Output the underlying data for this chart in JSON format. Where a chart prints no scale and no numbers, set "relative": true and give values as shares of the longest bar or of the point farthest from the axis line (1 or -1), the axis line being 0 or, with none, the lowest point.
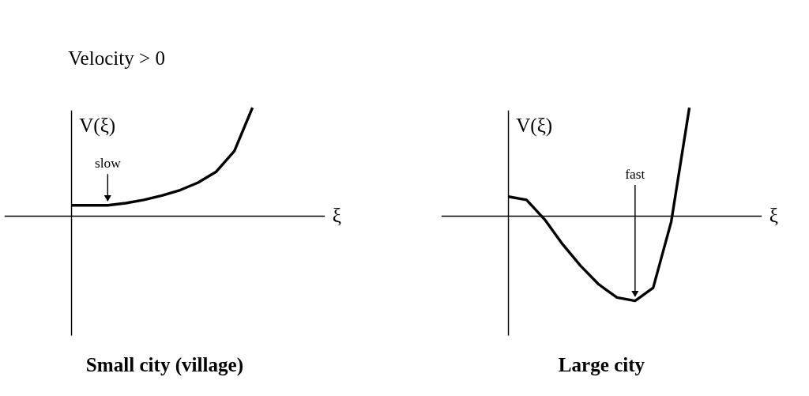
{
  "chart_data": [
    {
      "type": "line",
      "title": "Small city (village)",
      "ylabel": "V(ξ)",
      "xlabel": "ξ",
      "relative": true,
      "categories": [
        null,
        null,
        null,
        null,
        null,
        null,
        null,
        null,
        null,
        null,
        null
      ],
      "series": [
        {
          "color": "#000000",
          "values": [
            0.1,
            0.1,
            0.1,
            0.12,
            0.15,
            0.19,
            0.24,
            0.31,
            0.41,
            0.6,
            1.0
          ]
        }
      ],
      "annotations": [
        "Velocity > 0",
        {
          "text": "slow",
          "y": 0.1
        }
      ]
    },
    {
      "type": "line",
      "title": "Large city",
      "ylabel": "V(ξ)",
      "xlabel": "ξ",
      "relative": true,
      "categories": [
        null,
        null,
        null,
        null,
        null,
        null,
        null,
        null,
        null,
        null,
        null
      ],
      "series": [
        {
          "color": "#000000",
          "values": [
            0.18,
            0.15,
            -0.03,
            -0.26,
            -0.46,
            -0.63,
            -0.75,
            -0.78,
            -0.66,
            -0.05,
            1.0
          ]
        }
      ],
      "annotations": [
        {
          "text": "fast",
          "y": -0.78
        }
      ]
    }
  ]
}
